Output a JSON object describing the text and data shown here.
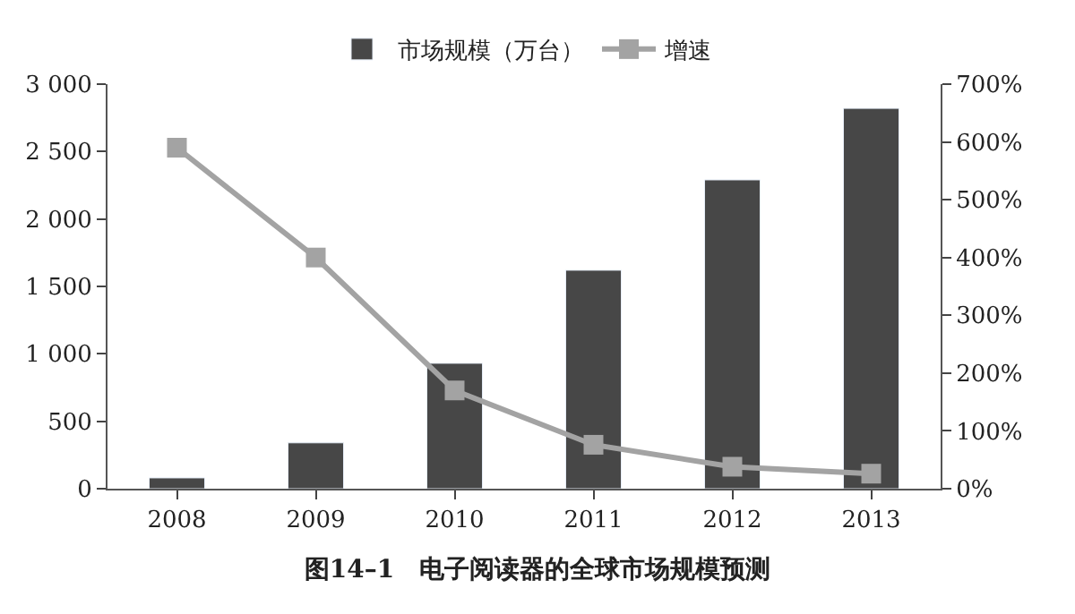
{
  "chart_data": {
    "type": "bar",
    "title": "图14–1　电子阅读器的全球市场规模预测",
    "categories": [
      "2008",
      "2009",
      "2010",
      "2011",
      "2012",
      "2013"
    ],
    "series": [
      {
        "name": "市场规模（万台）",
        "color": "#474747",
        "values": [
          80,
          340,
          930,
          1620,
          2290,
          2820
        ]
      },
      {
        "name": "增速",
        "type": "line",
        "axis": "y2",
        "color": "#a3a3a3",
        "marker": "square",
        "values": [
          590,
          400,
          170,
          76,
          38,
          26
        ]
      }
    ],
    "ylim": [
      0,
      3000
    ],
    "yticks": [
      0,
      500,
      {
        "value": 1000,
        "label": "1 000"
      },
      {
        "value": 1500,
        "label": "1 500"
      },
      {
        "value": 2000,
        "label": "2 000"
      },
      {
        "value": 2500,
        "label": "2 500"
      },
      {
        "value": 3000,
        "label": "3 000"
      }
    ],
    "y2lim": [
      0,
      700
    ],
    "y2ticks": [
      {
        "value": 0,
        "label": "0%"
      },
      {
        "value": 100,
        "label": "100%"
      },
      {
        "value": 200,
        "label": "200%"
      },
      {
        "value": 300,
        "label": "300%"
      },
      {
        "value": 400,
        "label": "400%"
      },
      {
        "value": 500,
        "label": "500%"
      },
      {
        "value": 600,
        "label": "600%"
      },
      {
        "value": 700,
        "label": "700%"
      }
    ],
    "legend": "top"
  }
}
